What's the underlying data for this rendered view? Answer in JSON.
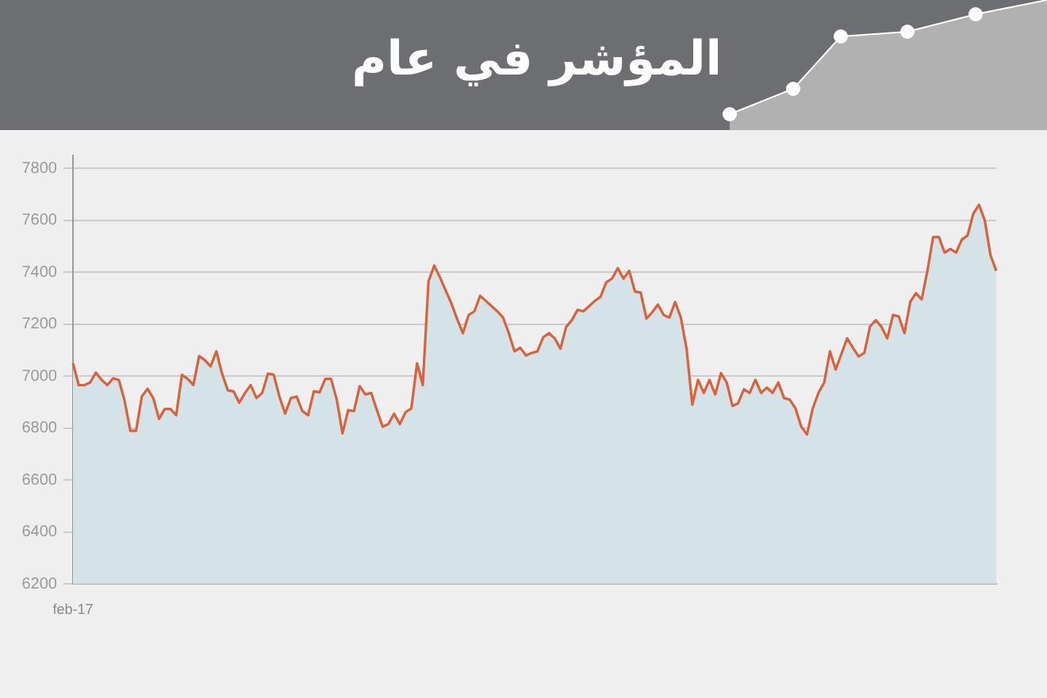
{
  "chart_data": {
    "type": "area",
    "title": "المؤشر في عام",
    "categories": [
      "feb-17",
      null,
      null,
      null,
      null,
      null,
      null,
      null,
      null,
      null,
      null,
      null,
      null,
      null,
      null,
      null,
      null,
      null,
      null,
      null,
      null,
      null,
      null,
      null,
      null,
      null,
      null,
      null,
      null,
      null,
      null,
      null,
      null,
      null,
      null,
      null,
      null,
      null,
      null,
      null,
      null,
      null,
      null,
      null,
      null,
      null,
      null,
      null,
      null,
      null,
      null,
      null,
      null,
      null,
      null,
      null,
      null,
      null,
      null,
      null,
      null,
      null,
      null,
      null,
      null,
      null,
      null,
      null,
      null,
      null,
      null,
      null,
      null,
      null,
      null,
      null,
      null,
      null,
      null,
      null,
      null,
      null,
      null,
      null,
      null,
      null,
      null,
      null,
      null,
      null,
      null,
      null,
      null,
      null,
      null,
      null,
      null,
      null,
      null,
      null,
      null,
      null,
      null,
      null,
      null,
      null,
      null,
      null,
      null,
      null,
      null,
      null,
      null,
      null,
      null,
      null,
      null,
      null,
      null,
      null,
      null,
      null,
      null,
      null,
      null,
      null,
      null,
      null,
      null,
      null,
      null,
      null,
      null,
      null,
      null,
      null,
      null,
      null,
      null,
      null,
      null,
      null,
      null,
      null,
      null,
      null,
      null,
      null,
      null,
      null,
      null,
      null,
      null,
      null,
      null,
      null,
      null,
      null,
      null,
      null,
      null,
      null
    ],
    "series": [
      {
        "color": "#d9623b",
        "values": [
          7050,
          6966,
          6966,
          6976,
          7014,
          6986,
          6966,
          6992,
          6986,
          6906,
          6790,
          6790,
          6922,
          6952,
          6916,
          6836,
          6874,
          6874,
          6850,
          7006,
          6990,
          6966,
          7078,
          7062,
          7038,
          7096,
          7010,
          6946,
          6942,
          6898,
          6936,
          6966,
          6916,
          6936,
          7010,
          7006,
          6922,
          6856,
          6916,
          6922,
          6866,
          6850,
          6942,
          6938,
          6990,
          6990,
          6910,
          6780,
          6870,
          6866,
          6962,
          6930,
          6936,
          6870,
          6806,
          6816,
          6856,
          6816,
          6862,
          6876,
          7050,
          6966,
          7366,
          7426,
          7380,
          7330,
          7280,
          7220,
          7166,
          7236,
          7250,
          7310,
          7290,
          7270,
          7250,
          7226,
          7166,
          7096,
          7110,
          7080,
          7090,
          7096,
          7150,
          7166,
          7146,
          7106,
          7190,
          7216,
          7256,
          7250,
          7270,
          7290,
          7306,
          7362,
          7376,
          7416,
          7376,
          7406,
          7326,
          7322,
          7222,
          7246,
          7276,
          7236,
          7226,
          7286,
          7226,
          7106,
          6890,
          6986,
          6936,
          6986,
          6930,
          7012,
          6976,
          6886,
          6896,
          6950,
          6936,
          6986,
          6936,
          6956,
          6936,
          6976,
          6916,
          6910,
          6876,
          6806,
          6776,
          6876,
          6936,
          6976,
          7096,
          7026,
          7086,
          7146,
          7110,
          7076,
          7090,
          7192,
          7216,
          7190,
          7146,
          7236,
          7230,
          7166,
          7286,
          7320,
          7296,
          7406,
          7536,
          7536,
          7476,
          7490,
          7476,
          7526,
          7542,
          7626,
          7660,
          7600,
          7466,
          7406
        ]
      }
    ],
    "ylim": [
      6200,
      7850
    ],
    "yticks": [
      6200,
      6400,
      6600,
      6800,
      7000,
      7200,
      7400,
      7600,
      7800
    ],
    "grid": "y"
  }
}
